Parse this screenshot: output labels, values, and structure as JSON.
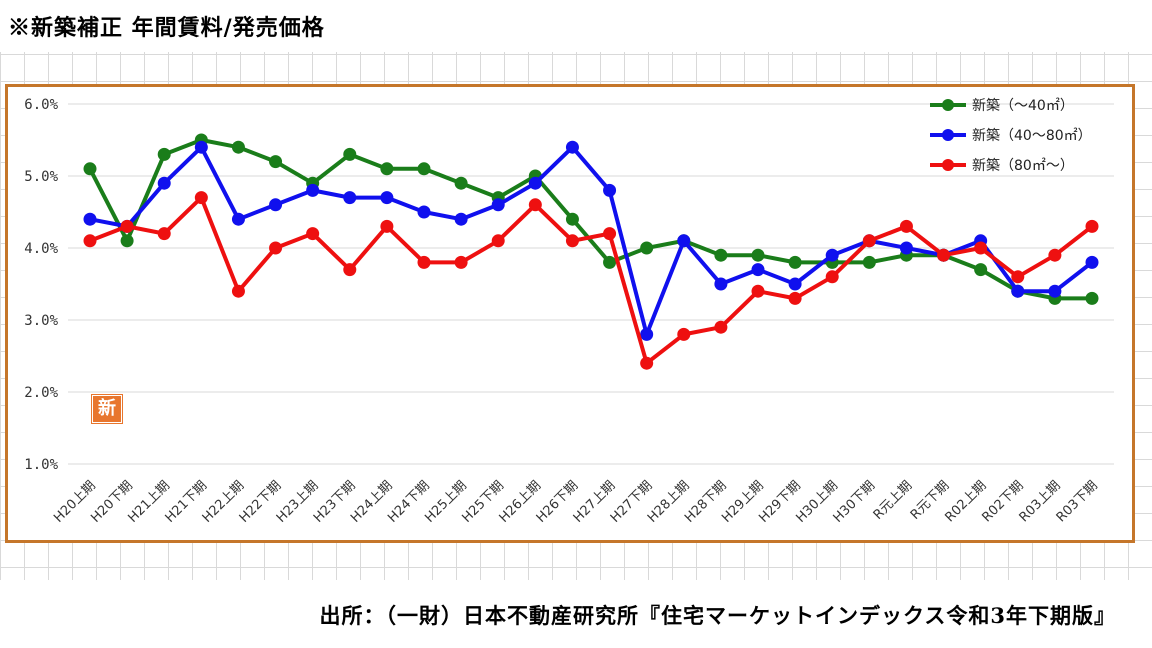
{
  "title": "※新築補正 年間賃料/発売価格",
  "source": "出所：（一財）日本不動産研究所『住宅マーケットインデックス令和3年下期版』",
  "stamp": "新",
  "chart_data": {
    "type": "line",
    "title": "",
    "xlabel": "",
    "ylabel": "",
    "ylim": [
      1.0,
      6.0
    ],
    "yticks": [
      "1.0%",
      "2.0%",
      "3.0%",
      "4.0%",
      "5.0%",
      "6.0%"
    ],
    "categories": [
      "H20上期",
      "H20下期",
      "H21上期",
      "H21下期",
      "H22上期",
      "H22下期",
      "H23上期",
      "H23下期",
      "H24上期",
      "H24下期",
      "H25上期",
      "H25下期",
      "H26上期",
      "H26下期",
      "H27上期",
      "H27下期",
      "H28上期",
      "H28下期",
      "H29上期",
      "H29下期",
      "H30上期",
      "H30下期",
      "R元上期",
      "R元下期",
      "R02上期",
      "R02下期",
      "R03上期",
      "R03下期"
    ],
    "legend_position": "top-right",
    "grid": "horizontal",
    "series": [
      {
        "name": "新築（～40㎡）",
        "color": "#1a7d1a",
        "values": [
          5.1,
          4.1,
          5.3,
          5.5,
          5.4,
          5.2,
          4.9,
          5.3,
          5.1,
          5.1,
          4.9,
          4.7,
          5.0,
          4.4,
          3.8,
          4.0,
          4.1,
          3.9,
          3.9,
          3.8,
          3.8,
          3.8,
          3.9,
          3.9,
          3.7,
          3.4,
          3.3,
          3.3
        ]
      },
      {
        "name": "新築（40～80㎡）",
        "color": "#1010ee",
        "values": [
          4.4,
          4.3,
          4.9,
          5.4,
          4.4,
          4.6,
          4.8,
          4.7,
          4.7,
          4.5,
          4.4,
          4.6,
          4.9,
          5.4,
          4.8,
          2.8,
          4.1,
          3.5,
          3.7,
          3.5,
          3.9,
          4.1,
          4.0,
          3.9,
          4.1,
          3.4,
          3.4,
          3.8
        ]
      },
      {
        "name": "新築（80㎡～）",
        "color": "#ee1010",
        "values": [
          4.1,
          4.3,
          4.2,
          4.7,
          3.4,
          4.0,
          4.2,
          3.7,
          4.3,
          3.8,
          3.8,
          4.1,
          4.6,
          4.1,
          4.2,
          2.4,
          2.8,
          2.9,
          3.4,
          3.3,
          3.6,
          4.1,
          4.3,
          3.9,
          4.0,
          3.6,
          3.9,
          4.3
        ]
      }
    ]
  }
}
